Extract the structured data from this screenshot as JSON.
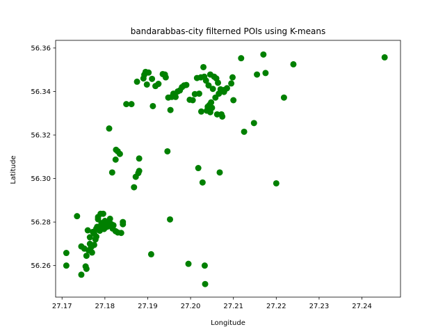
{
  "chart_data": {
    "type": "scatter",
    "title": "bandarabbas-city filterned POIs using K-means",
    "xlabel": "Longitude",
    "ylabel": "Latitude",
    "xlim": [
      27.1685,
      27.249
    ],
    "ylim": [
      56.2455,
      56.3635
    ],
    "xticks": [
      27.17,
      27.18,
      27.19,
      27.2,
      27.21,
      27.22,
      27.23,
      27.24
    ],
    "xtick_labels": [
      "27.17",
      "27.18",
      "27.19",
      "27.20",
      "27.21",
      "27.22",
      "27.23",
      "27.24"
    ],
    "yticks": [
      56.26,
      56.28,
      56.3,
      56.32,
      56.34,
      56.36
    ],
    "ytick_labels": [
      "56.26",
      "56.28",
      "56.30",
      "56.32",
      "56.34",
      "56.36"
    ],
    "grid": false,
    "colors": {
      "points": "#008000",
      "axes": "#000000",
      "background": "#ffffff"
    },
    "series": [
      {
        "points": [
          [
            27.171,
            56.2658
          ],
          [
            27.171,
            56.26
          ],
          [
            27.1735,
            56.2827
          ],
          [
            27.1745,
            56.2558
          ],
          [
            27.1745,
            56.2688
          ],
          [
            27.1752,
            56.2678
          ],
          [
            27.1755,
            56.2596
          ],
          [
            27.1757,
            56.2585
          ],
          [
            27.1757,
            56.2645
          ],
          [
            27.176,
            56.2762
          ],
          [
            27.1762,
            56.267
          ],
          [
            27.1765,
            56.27
          ],
          [
            27.1765,
            56.273
          ],
          [
            27.1768,
            56.2685
          ],
          [
            27.177,
            56.266
          ],
          [
            27.1772,
            56.2755
          ],
          [
            27.1775,
            56.2695
          ],
          [
            27.1775,
            56.2748
          ],
          [
            27.1778,
            56.272
          ],
          [
            27.178,
            56.2733
          ],
          [
            27.178,
            56.277
          ],
          [
            27.1782,
            56.2778
          ],
          [
            27.1784,
            56.2813
          ],
          [
            27.1784,
            56.2823
          ],
          [
            27.1788,
            56.276
          ],
          [
            27.179,
            56.2838
          ],
          [
            27.1792,
            56.2795
          ],
          [
            27.1794,
            56.278
          ],
          [
            27.1796,
            56.2838
          ],
          [
            27.1798,
            56.2768
          ],
          [
            27.18,
            56.2805
          ],
          [
            27.1802,
            56.279
          ],
          [
            27.1805,
            56.2778
          ],
          [
            27.1806,
            56.2795
          ],
          [
            27.1808,
            56.2782
          ],
          [
            27.181,
            56.28
          ],
          [
            27.1812,
            56.2815
          ],
          [
            27.1815,
            56.279
          ],
          [
            27.1818,
            56.277
          ],
          [
            27.182,
            56.2785
          ],
          [
            27.1825,
            56.2758
          ],
          [
            27.183,
            56.2752
          ],
          [
            27.1838,
            56.275
          ],
          [
            27.1842,
            56.279
          ],
          [
            27.1842,
            56.28
          ],
          [
            27.181,
            56.323
          ],
          [
            27.1817,
            56.3028
          ],
          [
            27.1825,
            56.3087
          ],
          [
            27.1826,
            56.3132
          ],
          [
            27.183,
            56.3125
          ],
          [
            27.1835,
            56.3113
          ],
          [
            27.185,
            56.3342
          ],
          [
            27.1862,
            56.3342
          ],
          [
            27.1868,
            56.296
          ],
          [
            27.1872,
            56.3008
          ],
          [
            27.1875,
            56.3445
          ],
          [
            27.1878,
            56.3025
          ],
          [
            27.188,
            56.3035
          ],
          [
            27.188,
            56.3092
          ],
          [
            27.189,
            56.346
          ],
          [
            27.1892,
            56.3477
          ],
          [
            27.1895,
            56.349
          ],
          [
            27.1898,
            56.3432
          ],
          [
            27.1902,
            56.3487
          ],
          [
            27.1908,
            56.2652
          ],
          [
            27.191,
            56.3458
          ],
          [
            27.1912,
            56.3333
          ],
          [
            27.1918,
            56.3425
          ],
          [
            27.1925,
            56.3435
          ],
          [
            27.1935,
            56.348
          ],
          [
            27.194,
            56.3478
          ],
          [
            27.1942,
            56.3465
          ],
          [
            27.1946,
            56.3125
          ],
          [
            27.1948,
            56.3372
          ],
          [
            27.1952,
            56.2812
          ],
          [
            27.1953,
            56.3315
          ],
          [
            27.1956,
            56.3375
          ],
          [
            27.196,
            56.339
          ],
          [
            27.1965,
            56.3375
          ],
          [
            27.197,
            56.34
          ],
          [
            27.1975,
            56.3405
          ],
          [
            27.198,
            56.342
          ],
          [
            27.1985,
            56.3428
          ],
          [
            27.199,
            56.343
          ],
          [
            27.1995,
            56.2608
          ],
          [
            27.1998,
            56.3362
          ],
          [
            27.2005,
            56.336
          ],
          [
            27.201,
            56.3388
          ],
          [
            27.2015,
            56.3462
          ],
          [
            27.2018,
            56.3048
          ],
          [
            27.202,
            56.339
          ],
          [
            27.2024,
            56.3465
          ],
          [
            27.2025,
            56.3308
          ],
          [
            27.2028,
            56.2982
          ],
          [
            27.203,
            56.3512
          ],
          [
            27.2032,
            56.3468
          ],
          [
            27.2033,
            56.26
          ],
          [
            27.2034,
            56.2515
          ],
          [
            27.2036,
            56.345
          ],
          [
            27.2038,
            56.3312
          ],
          [
            27.204,
            56.333
          ],
          [
            27.2042,
            56.3428
          ],
          [
            27.2044,
            56.3338
          ],
          [
            27.2046,
            56.3478
          ],
          [
            27.2046,
            56.3305
          ],
          [
            27.2048,
            56.335
          ],
          [
            27.205,
            56.3325
          ],
          [
            27.2052,
            56.3412
          ],
          [
            27.2055,
            56.3468
          ],
          [
            27.2058,
            56.3372
          ],
          [
            27.206,
            56.346
          ],
          [
            27.2062,
            56.3295
          ],
          [
            27.2064,
            56.344
          ],
          [
            27.2066,
            56.339
          ],
          [
            27.2068,
            56.3028
          ],
          [
            27.207,
            56.341
          ],
          [
            27.2072,
            56.3295
          ],
          [
            27.2074,
            56.3285
          ],
          [
            27.2076,
            56.3402
          ],
          [
            27.2078,
            56.3398
          ],
          [
            27.208,
            56.3408
          ],
          [
            27.2085,
            56.3415
          ],
          [
            27.2095,
            56.3437
          ],
          [
            27.2098,
            56.3465
          ],
          [
            27.21,
            56.336
          ],
          [
            27.2118,
            56.3553
          ],
          [
            27.2125,
            56.3215
          ],
          [
            27.2148,
            56.3255
          ],
          [
            27.2155,
            56.3478
          ],
          [
            27.217,
            56.357
          ],
          [
            27.2175,
            56.3485
          ],
          [
            27.22,
            56.2978
          ],
          [
            27.2218,
            56.3372
          ],
          [
            27.224,
            56.3525
          ],
          [
            27.2453,
            56.3557
          ]
        ]
      }
    ]
  }
}
